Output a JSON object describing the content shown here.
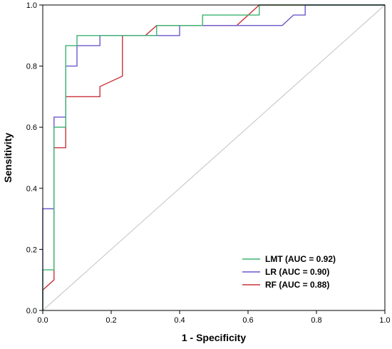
{
  "chart_data": {
    "type": "line",
    "title": "",
    "xlabel": "1 - Specificity",
    "ylabel": "Sensitivity",
    "xlim": [
      0,
      1
    ],
    "ylim": [
      0,
      1
    ],
    "xticks": [
      "0.0",
      "0.2",
      "0.4",
      "0.6",
      "0.8",
      "1.0"
    ],
    "yticks": [
      "0.0",
      "0.2",
      "0.4",
      "0.6",
      "0.8",
      "1.0"
    ],
    "grid": false,
    "legend_position": "bottom-right",
    "reference_line": {
      "from": [
        0,
        0
      ],
      "to": [
        1,
        1
      ],
      "color": "#c0c0c0"
    },
    "series": [
      {
        "name": "LMT (AUC = 0.92)",
        "color": "#3cb371",
        "x": [
          0,
          0,
          0.033,
          0.033,
          0.067,
          0.067,
          0.1,
          0.1,
          0.333,
          0.333,
          0.467,
          0.467,
          0.633,
          0.633,
          1.0
        ],
        "y": [
          0,
          0.133,
          0.133,
          0.6,
          0.6,
          0.867,
          0.867,
          0.9,
          0.9,
          0.933,
          0.933,
          0.967,
          0.967,
          1.0,
          1.0
        ]
      },
      {
        "name": "LR (AUC = 0.90)",
        "color": "#6a5acd",
        "x": [
          0,
          0,
          0.033,
          0.033,
          0.067,
          0.067,
          0.1,
          0.1,
          0.167,
          0.167,
          0.4,
          0.4,
          0.7,
          0.733,
          0.767,
          0.767,
          1.0
        ],
        "y": [
          0,
          0.333,
          0.333,
          0.633,
          0.633,
          0.8,
          0.8,
          0.867,
          0.867,
          0.9,
          0.9,
          0.933,
          0.933,
          0.967,
          0.967,
          1.0,
          1.0
        ]
      },
      {
        "name": "RF (AUC = 0.88)",
        "color": "#c8333b",
        "x": [
          0,
          0,
          0.033,
          0.033,
          0.067,
          0.067,
          0.167,
          0.167,
          0.233,
          0.233,
          0.3,
          0.333,
          0.567,
          0.633,
          1.0
        ],
        "y": [
          0,
          0.067,
          0.1,
          0.533,
          0.533,
          0.7,
          0.7,
          0.733,
          0.767,
          0.9,
          0.9,
          0.933,
          0.933,
          1.0,
          1.0
        ]
      }
    ]
  }
}
